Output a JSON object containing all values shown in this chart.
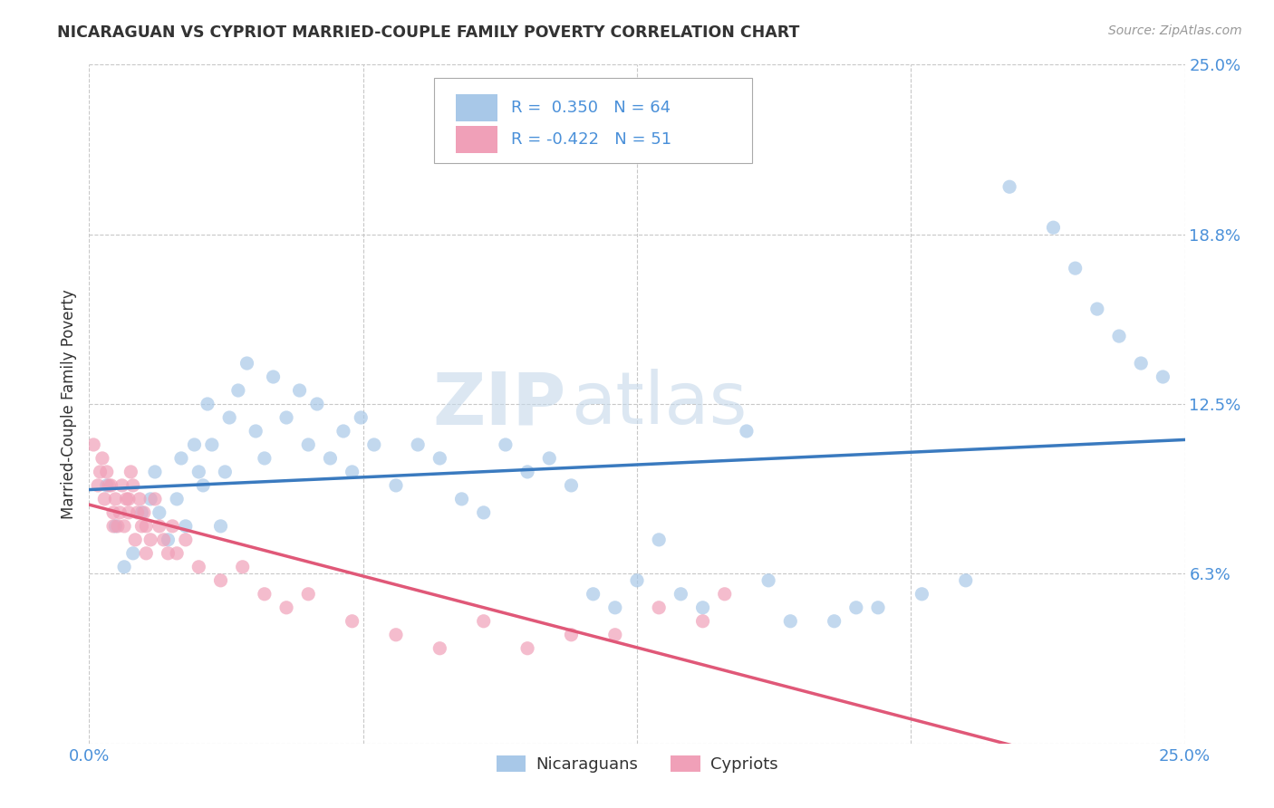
{
  "title": "NICARAGUAN VS CYPRIOT MARRIED-COUPLE FAMILY POVERTY CORRELATION CHART",
  "source": "Source: ZipAtlas.com",
  "ylabel": "Married-Couple Family Poverty",
  "y_tick_values": [
    0.0,
    6.25,
    12.5,
    18.75,
    25.0
  ],
  "y_tick_labels_right": [
    "",
    "6.3%",
    "12.5%",
    "18.8%",
    "25.0%"
  ],
  "xlim": [
    0.0,
    25.0
  ],
  "ylim": [
    0.0,
    25.0
  ],
  "legend_labels": [
    "Nicaraguans",
    "Cypriots"
  ],
  "r_nicaraguan": 0.35,
  "n_nicaraguan": 64,
  "r_cypriot": -0.422,
  "n_cypriot": 51,
  "watermark_zip": "ZIP",
  "watermark_atlas": "atlas",
  "background_color": "#ffffff",
  "grid_color": "#c8c8c8",
  "scatter_color_nicaraguan": "#a8c8e8",
  "scatter_color_cypriot": "#f0a0b8",
  "line_color_nicaraguan": "#3a7abf",
  "line_color_cypriot": "#e05878",
  "title_color": "#333333",
  "axis_label_color": "#333333",
  "tick_label_color": "#4a90d9",
  "legend_text_color": "#4a90d9",
  "legend_box_color_nicaraguan": "#a8c8e8",
  "legend_box_color_cypriot": "#f0a0b8",
  "nic_x": [
    0.4,
    0.6,
    0.8,
    1.0,
    1.2,
    1.4,
    1.5,
    1.6,
    1.8,
    2.0,
    2.1,
    2.2,
    2.4,
    2.5,
    2.6,
    2.7,
    2.8,
    3.0,
    3.1,
    3.2,
    3.4,
    3.6,
    3.8,
    4.0,
    4.2,
    4.5,
    4.8,
    5.0,
    5.2,
    5.5,
    5.8,
    6.0,
    6.2,
    6.5,
    7.0,
    7.5,
    8.0,
    8.5,
    9.0,
    9.5,
    10.0,
    10.5,
    11.0,
    11.5,
    12.0,
    12.5,
    13.0,
    13.5,
    14.0,
    15.0,
    15.5,
    16.0,
    17.0,
    17.5,
    18.0,
    19.0,
    20.0,
    21.0,
    22.0,
    22.5,
    23.0,
    23.5,
    24.0,
    24.5
  ],
  "nic_y": [
    9.5,
    8.0,
    6.5,
    7.0,
    8.5,
    9.0,
    10.0,
    8.5,
    7.5,
    9.0,
    10.5,
    8.0,
    11.0,
    10.0,
    9.5,
    12.5,
    11.0,
    8.0,
    10.0,
    12.0,
    13.0,
    14.0,
    11.5,
    10.5,
    13.5,
    12.0,
    13.0,
    11.0,
    12.5,
    10.5,
    11.5,
    10.0,
    12.0,
    11.0,
    9.5,
    11.0,
    10.5,
    9.0,
    8.5,
    11.0,
    10.0,
    10.5,
    9.5,
    5.5,
    5.0,
    6.0,
    7.5,
    5.5,
    5.0,
    11.5,
    6.0,
    4.5,
    4.5,
    5.0,
    5.0,
    5.5,
    6.0,
    20.5,
    19.0,
    17.5,
    16.0,
    15.0,
    14.0,
    13.5
  ],
  "cyp_x": [
    0.1,
    0.2,
    0.3,
    0.35,
    0.4,
    0.5,
    0.55,
    0.6,
    0.65,
    0.7,
    0.75,
    0.8,
    0.85,
    0.9,
    0.95,
    1.0,
    1.05,
    1.1,
    1.15,
    1.2,
    1.25,
    1.3,
    1.4,
    1.5,
    1.6,
    1.7,
    1.8,
    1.9,
    2.0,
    2.2,
    2.5,
    3.0,
    3.5,
    4.0,
    4.5,
    5.0,
    6.0,
    7.0,
    8.0,
    9.0,
    10.0,
    11.0,
    12.0,
    13.0,
    14.0,
    14.5,
    0.25,
    0.45,
    0.55,
    0.9,
    1.3
  ],
  "cyp_y": [
    11.0,
    9.5,
    10.5,
    9.0,
    10.0,
    9.5,
    8.5,
    9.0,
    8.0,
    8.5,
    9.5,
    8.0,
    9.0,
    8.5,
    10.0,
    9.5,
    7.5,
    8.5,
    9.0,
    8.0,
    8.5,
    8.0,
    7.5,
    9.0,
    8.0,
    7.5,
    7.0,
    8.0,
    7.0,
    7.5,
    6.5,
    6.0,
    6.5,
    5.5,
    5.0,
    5.5,
    4.5,
    4.0,
    3.5,
    4.5,
    3.5,
    4.0,
    4.0,
    5.0,
    4.5,
    5.5,
    10.0,
    9.5,
    8.0,
    9.0,
    7.0
  ]
}
